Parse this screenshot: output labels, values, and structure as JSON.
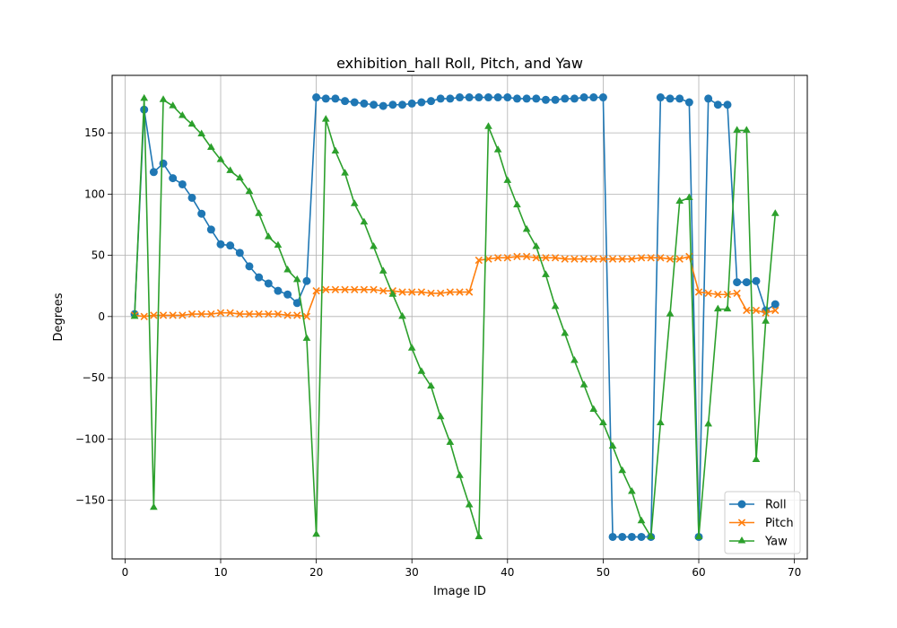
{
  "chart_data": {
    "type": "line",
    "title": "exhibition_hall Roll, Pitch, and Yaw",
    "xlabel": "Image ID",
    "ylabel": "Degrees",
    "xlim": [
      -1.35,
      71.35
    ],
    "ylim": [
      -198,
      197
    ],
    "xticks": [
      0,
      10,
      20,
      30,
      40,
      50,
      60,
      70
    ],
    "yticks": [
      -150,
      -100,
      -50,
      0,
      50,
      100,
      150
    ],
    "ytick_labels": [
      "−150",
      "−100",
      "−50",
      "0",
      "50",
      "100",
      "150"
    ],
    "grid": true,
    "legend_position": "lower-right",
    "x": [
      1,
      2,
      3,
      4,
      5,
      6,
      7,
      8,
      9,
      10,
      11,
      12,
      13,
      14,
      15,
      16,
      17,
      18,
      19,
      20,
      21,
      22,
      23,
      24,
      25,
      26,
      27,
      28,
      29,
      30,
      31,
      32,
      33,
      34,
      35,
      36,
      37,
      38,
      39,
      40,
      41,
      42,
      43,
      44,
      45,
      46,
      47,
      48,
      49,
      50,
      51,
      52,
      53,
      54,
      55,
      56,
      57,
      58,
      59,
      60,
      61,
      62,
      63,
      64,
      65,
      66,
      67,
      68
    ],
    "series": [
      {
        "name": "Roll",
        "color": "#1f77b4",
        "marker": "circle",
        "values": [
          2,
          169,
          118,
          125,
          113,
          108,
          97,
          84,
          71,
          59,
          58,
          52,
          41,
          32,
          27,
          21,
          18,
          11,
          29,
          179,
          178,
          178,
          176,
          175,
          174,
          173,
          172,
          173,
          173,
          174,
          175,
          176,
          178,
          178,
          179,
          179,
          179,
          179,
          179,
          179,
          178,
          178,
          178,
          177,
          177,
          178,
          178,
          179,
          179,
          179,
          -180,
          -180,
          -180,
          -180,
          -180,
          179,
          178,
          178,
          175,
          -180,
          178,
          173,
          173,
          28,
          28,
          29,
          5,
          10
        ]
      },
      {
        "name": "Pitch",
        "color": "#ff7f0e",
        "marker": "x",
        "values": [
          1,
          0,
          1,
          1,
          1,
          1,
          2,
          2,
          2,
          3,
          3,
          2,
          2,
          2,
          2,
          2,
          1,
          1,
          0,
          21,
          22,
          22,
          22,
          22,
          22,
          22,
          21,
          21,
          20,
          20,
          20,
          19,
          19,
          20,
          20,
          20,
          46,
          47,
          48,
          48,
          49,
          49,
          48,
          48,
          48,
          47,
          47,
          47,
          47,
          47,
          47,
          47,
          47,
          48,
          48,
          48,
          47,
          47,
          49,
          20,
          19,
          18,
          18,
          19,
          5,
          5,
          3,
          5
        ]
      },
      {
        "name": "Yaw",
        "color": "#2ca02c",
        "marker": "triangle",
        "values": [
          0,
          178,
          -156,
          177,
          172,
          164,
          157,
          149,
          138,
          128,
          119,
          113,
          102,
          84,
          65,
          58,
          38,
          30,
          -18,
          -178,
          161,
          135,
          117,
          92,
          77,
          57,
          37,
          18,
          0,
          -26,
          -45,
          -57,
          -82,
          -103,
          -130,
          -154,
          -180,
          155,
          136,
          111,
          91,
          71,
          57,
          34,
          8,
          -14,
          -36,
          -56,
          -76,
          -87,
          -106,
          -126,
          -143,
          -167,
          -180,
          -87,
          2,
          94,
          97,
          -180,
          -88,
          6,
          6,
          152,
          152,
          -117,
          -4,
          84
        ]
      }
    ]
  }
}
